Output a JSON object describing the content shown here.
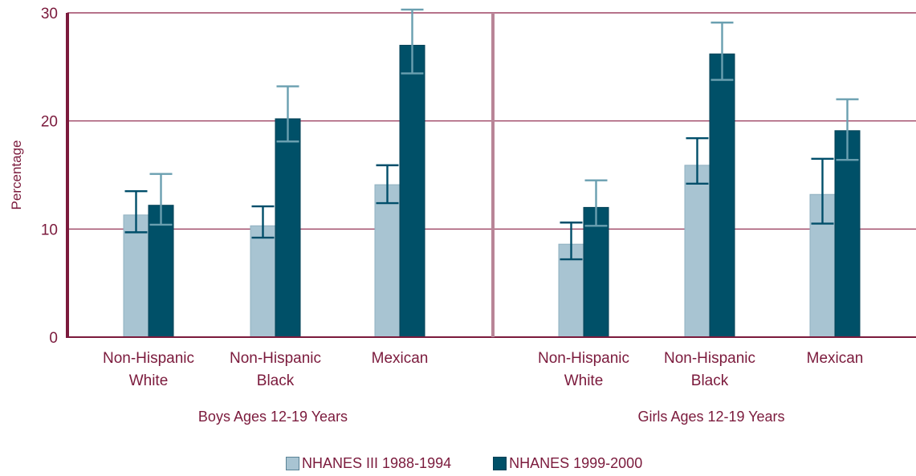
{
  "chart_data": {
    "type": "bar",
    "ylabel": "Percentage",
    "ylim": [
      0,
      30
    ],
    "yticks": [
      "0",
      "10",
      "20",
      "30"
    ],
    "grid": true,
    "groups": [
      {
        "label": "Boys Ages 12-19 Years",
        "categories": [
          {
            "line1": "Non-Hispanic",
            "line2": "White"
          },
          {
            "line1": "Non-Hispanic",
            "line2": "Black"
          },
          {
            "line1": "Mexican",
            "line2": ""
          }
        ]
      },
      {
        "label": "Girls Ages 12-19 Years",
        "categories": [
          {
            "line1": "Non-Hispanic",
            "line2": "White"
          },
          {
            "line1": "Non-Hispanic",
            "line2": "Black"
          },
          {
            "line1": "Mexican",
            "line2": ""
          }
        ]
      }
    ],
    "series": [
      {
        "name": "NHANES III 1988-1994",
        "color": "#a8c4d2",
        "errcolor": "#004e6a",
        "values": [
          11.3,
          10.3,
          14.1,
          8.6,
          15.9,
          13.2
        ],
        "err_low": [
          9.7,
          9.2,
          12.4,
          7.2,
          14.2,
          10.5
        ],
        "err_high": [
          13.5,
          12.1,
          15.9,
          10.6,
          18.4,
          16.5
        ]
      },
      {
        "name": "NHANES 1999-2000",
        "color": "#005068",
        "errcolor": "#6a9fb0",
        "values": [
          12.2,
          20.2,
          27.0,
          12.0,
          26.2,
          19.1
        ],
        "err_low": [
          10.4,
          18.1,
          24.4,
          10.3,
          23.8,
          16.4
        ],
        "err_high": [
          15.1,
          23.2,
          30.3,
          14.5,
          29.1,
          22.0
        ]
      }
    ]
  },
  "colors": {
    "text": "#7b1a3c",
    "axis": "#7b1a3c",
    "gridline": "#8a1f45",
    "divider": "#b98597"
  }
}
